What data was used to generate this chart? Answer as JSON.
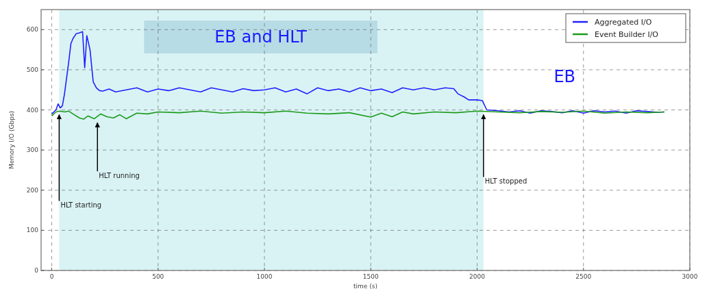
{
  "chart_data": {
    "type": "line",
    "xlabel": "time (s)",
    "ylabel": "Memory I/O (Gbps)",
    "xlim": [
      -50,
      3000
    ],
    "ylim": [
      0,
      650
    ],
    "xticks": [
      0,
      500,
      1000,
      1500,
      2000,
      2500,
      3000
    ],
    "yticks": [
      0,
      100,
      200,
      300,
      400,
      500,
      600
    ],
    "grid": true,
    "legend": "top right",
    "line_style": "solid",
    "series": [
      {
        "name": "Aggregated I/O",
        "color": "#2020ff",
        "x": [
          0,
          20,
          30,
          40,
          50,
          60,
          70,
          80,
          90,
          100,
          115,
          130,
          145,
          155,
          165,
          180,
          195,
          210,
          225,
          240,
          270,
          300,
          350,
          400,
          450,
          500,
          550,
          600,
          650,
          700,
          750,
          800,
          850,
          900,
          950,
          1000,
          1050,
          1100,
          1150,
          1200,
          1250,
          1300,
          1350,
          1400,
          1450,
          1500,
          1550,
          1600,
          1650,
          1700,
          1750,
          1800,
          1850,
          1890,
          1910,
          1940,
          1960,
          2000,
          2025,
          2045,
          2100,
          2150,
          2200,
          2250,
          2300,
          2350,
          2400,
          2450,
          2500,
          2550,
          2600,
          2650,
          2700,
          2750,
          2800,
          2850,
          2880
        ],
        "values": [
          390,
          400,
          415,
          405,
          410,
          440,
          480,
          520,
          565,
          578,
          590,
          592,
          595,
          505,
          585,
          550,
          470,
          455,
          448,
          447,
          452,
          445,
          450,
          455,
          445,
          452,
          448,
          455,
          450,
          445,
          455,
          450,
          445,
          453,
          448,
          450,
          455,
          445,
          452,
          440,
          455,
          448,
          452,
          445,
          455,
          448,
          452,
          443,
          455,
          450,
          455,
          450,
          455,
          453,
          440,
          432,
          425,
          425,
          423,
          400,
          398,
          395,
          398,
          392,
          398,
          396,
          393,
          398,
          392,
          398,
          395,
          397,
          392,
          398,
          396,
          394,
          395
        ]
      },
      {
        "name": "Event Builder I/O",
        "color": "#1a9a1a",
        "x": [
          0,
          20,
          40,
          60,
          80,
          100,
          130,
          150,
          170,
          200,
          230,
          260,
          290,
          320,
          350,
          400,
          450,
          500,
          600,
          700,
          800,
          900,
          1000,
          1100,
          1200,
          1300,
          1400,
          1500,
          1550,
          1600,
          1650,
          1700,
          1800,
          1900,
          2000,
          2100,
          2200,
          2300,
          2400,
          2500,
          2600,
          2700,
          2800,
          2880
        ],
        "values": [
          385,
          395,
          397,
          395,
          397,
          390,
          380,
          377,
          385,
          378,
          390,
          383,
          380,
          388,
          378,
          392,
          390,
          395,
          393,
          397,
          392,
          395,
          393,
          397,
          392,
          390,
          393,
          382,
          392,
          383,
          395,
          390,
          395,
          393,
          397,
          395,
          393,
          396,
          394,
          397,
          392,
          395,
          393,
          395
        ]
      }
    ],
    "bands": [
      {
        "axis": "x",
        "from": 35,
        "to": 2030,
        "label": "EB and HLT",
        "color": "#d9f3f4"
      }
    ],
    "annotations": [
      {
        "text": "HLT starting",
        "x": 35,
        "y": 395
      },
      {
        "text": "HLT running",
        "x": 215,
        "y": 375
      },
      {
        "text": "HLT stopped",
        "x": 2030,
        "y": 395
      },
      "EB"
    ]
  }
}
